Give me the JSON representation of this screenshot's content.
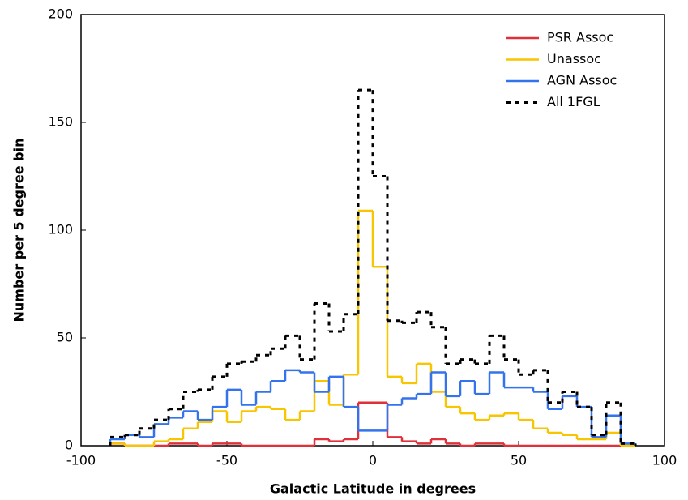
{
  "chart_data": {
    "type": "step-histogram",
    "x_label": "Galactic Latitude in degrees",
    "y_label": "Number per 5 degree bin",
    "bins": [
      -90,
      -85,
      -80,
      -75,
      -70,
      -65,
      -60,
      -55,
      -50,
      -45,
      -40,
      -35,
      -30,
      -25,
      -20,
      -15,
      -10,
      -5,
      0,
      5,
      10,
      15,
      20,
      25,
      30,
      35,
      40,
      45,
      50,
      55,
      60,
      65,
      70,
      75,
      80,
      85,
      90
    ],
    "series": [
      {
        "name": "PSR Assoc",
        "color": "#e0303a",
        "dashed": false,
        "values": [
          1,
          0,
          0,
          0,
          1,
          1,
          0,
          1,
          1,
          0,
          0,
          0,
          0,
          0,
          3,
          2,
          3,
          20,
          20,
          4,
          2,
          1,
          3,
          1,
          0,
          1,
          1,
          0,
          0,
          0,
          0,
          0,
          0,
          0,
          0,
          0
        ]
      },
      {
        "name": "Unassoc",
        "color": "#f7c600",
        "dashed": false,
        "values": [
          1,
          0,
          0,
          2,
          3,
          8,
          11,
          16,
          11,
          16,
          18,
          17,
          12,
          16,
          30,
          19,
          33,
          109,
          83,
          32,
          29,
          38,
          25,
          18,
          15,
          12,
          14,
          15,
          12,
          8,
          6,
          5,
          3,
          3,
          6,
          0
        ]
      },
      {
        "name": "AGN Assoc",
        "color": "#3473ee",
        "dashed": false,
        "values": [
          3,
          5,
          4,
          10,
          13,
          16,
          12,
          18,
          26,
          19,
          25,
          30,
          35,
          34,
          25,
          32,
          18,
          7,
          7,
          19,
          22,
          24,
          34,
          23,
          30,
          24,
          34,
          27,
          27,
          25,
          17,
          23,
          18,
          4,
          14,
          1
        ]
      },
      {
        "name": "All 1FGL",
        "color": "#000000",
        "dashed": true,
        "values": [
          4,
          5,
          8,
          12,
          17,
          25,
          26,
          32,
          38,
          39,
          42,
          45,
          51,
          40,
          66,
          53,
          61,
          165,
          125,
          58,
          57,
          62,
          55,
          38,
          40,
          38,
          51,
          40,
          33,
          35,
          20,
          25,
          18,
          5,
          20,
          1
        ]
      }
    ],
    "xlim": [
      -100,
      100
    ],
    "xticks": [
      -100,
      -50,
      0,
      50,
      100
    ],
    "ylim": [
      0,
      200
    ],
    "yticks": [
      0,
      50,
      100,
      150,
      200
    ],
    "legend": "upper-right"
  }
}
